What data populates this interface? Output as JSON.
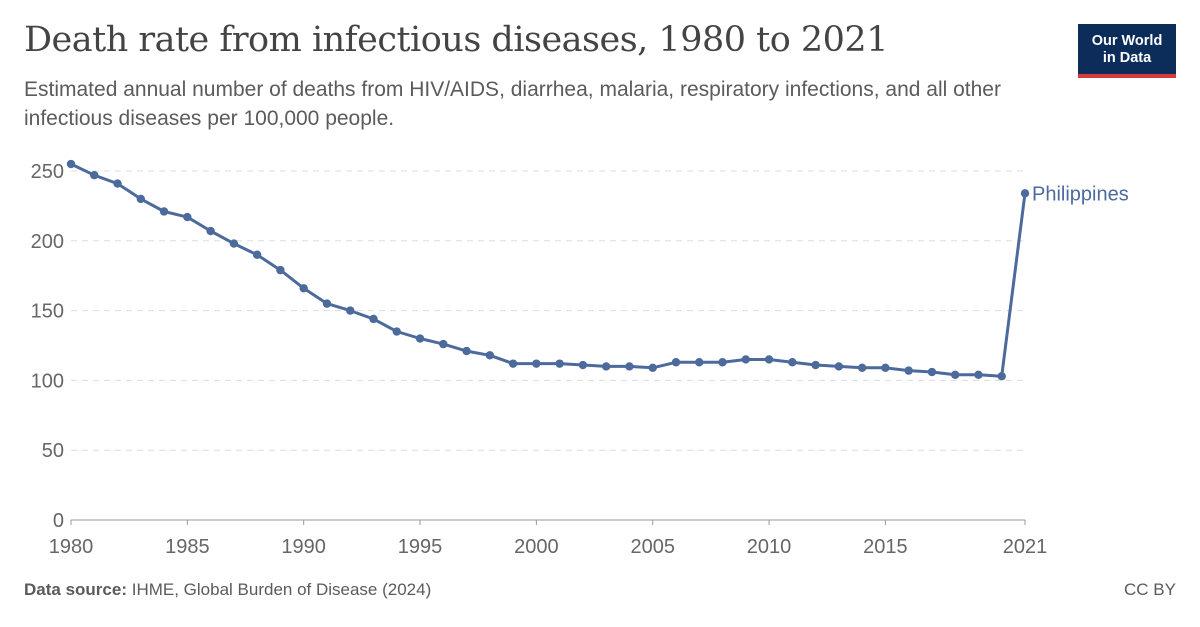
{
  "header": {
    "title": "Death rate from infectious diseases, 1980 to 2021",
    "subtitle": "Estimated annual number of deaths from HIV/AIDS, diarrhea, malaria, respiratory infections, and all other infectious diseases per 100,000 people."
  },
  "logo": {
    "line1": "Our World",
    "line2": "in Data",
    "bg_color": "#0c2c5a",
    "accent_color": "#d73c3c"
  },
  "footer": {
    "source_label": "Data source:",
    "source_text": "IHME, Global Burden of Disease (2024)",
    "license": "CC BY"
  },
  "chart_data": {
    "type": "line",
    "title": "Death rate from infectious diseases, 1980 to 2021",
    "xlabel": "",
    "ylabel": "",
    "xlim": [
      1980,
      2021
    ],
    "ylim": [
      0,
      250
    ],
    "x_ticks": [
      "1980",
      "1985",
      "1990",
      "1995",
      "2000",
      "2005",
      "2010",
      "2015",
      "2021"
    ],
    "y_ticks": [
      0,
      50,
      100,
      150,
      200,
      250
    ],
    "grid": "horizontal dashed",
    "series": [
      {
        "name": "Philippines",
        "color": "#4c6a9c",
        "x": [
          1980,
          1981,
          1982,
          1983,
          1984,
          1985,
          1986,
          1987,
          1988,
          1989,
          1990,
          1991,
          1992,
          1993,
          1994,
          1995,
          1996,
          1997,
          1998,
          1999,
          2000,
          2001,
          2002,
          2003,
          2004,
          2005,
          2006,
          2007,
          2008,
          2009,
          2010,
          2011,
          2012,
          2013,
          2014,
          2015,
          2016,
          2017,
          2018,
          2019,
          2020,
          2021
        ],
        "values": [
          255,
          247,
          241,
          230,
          221,
          217,
          207,
          198,
          190,
          179,
          166,
          155,
          150,
          144,
          135,
          130,
          126,
          121,
          118,
          112,
          112,
          112,
          111,
          110,
          110,
          109,
          113,
          113,
          113,
          115,
          115,
          113,
          111,
          110,
          109,
          109,
          107,
          106,
          104,
          104,
          103,
          234
        ]
      }
    ]
  }
}
